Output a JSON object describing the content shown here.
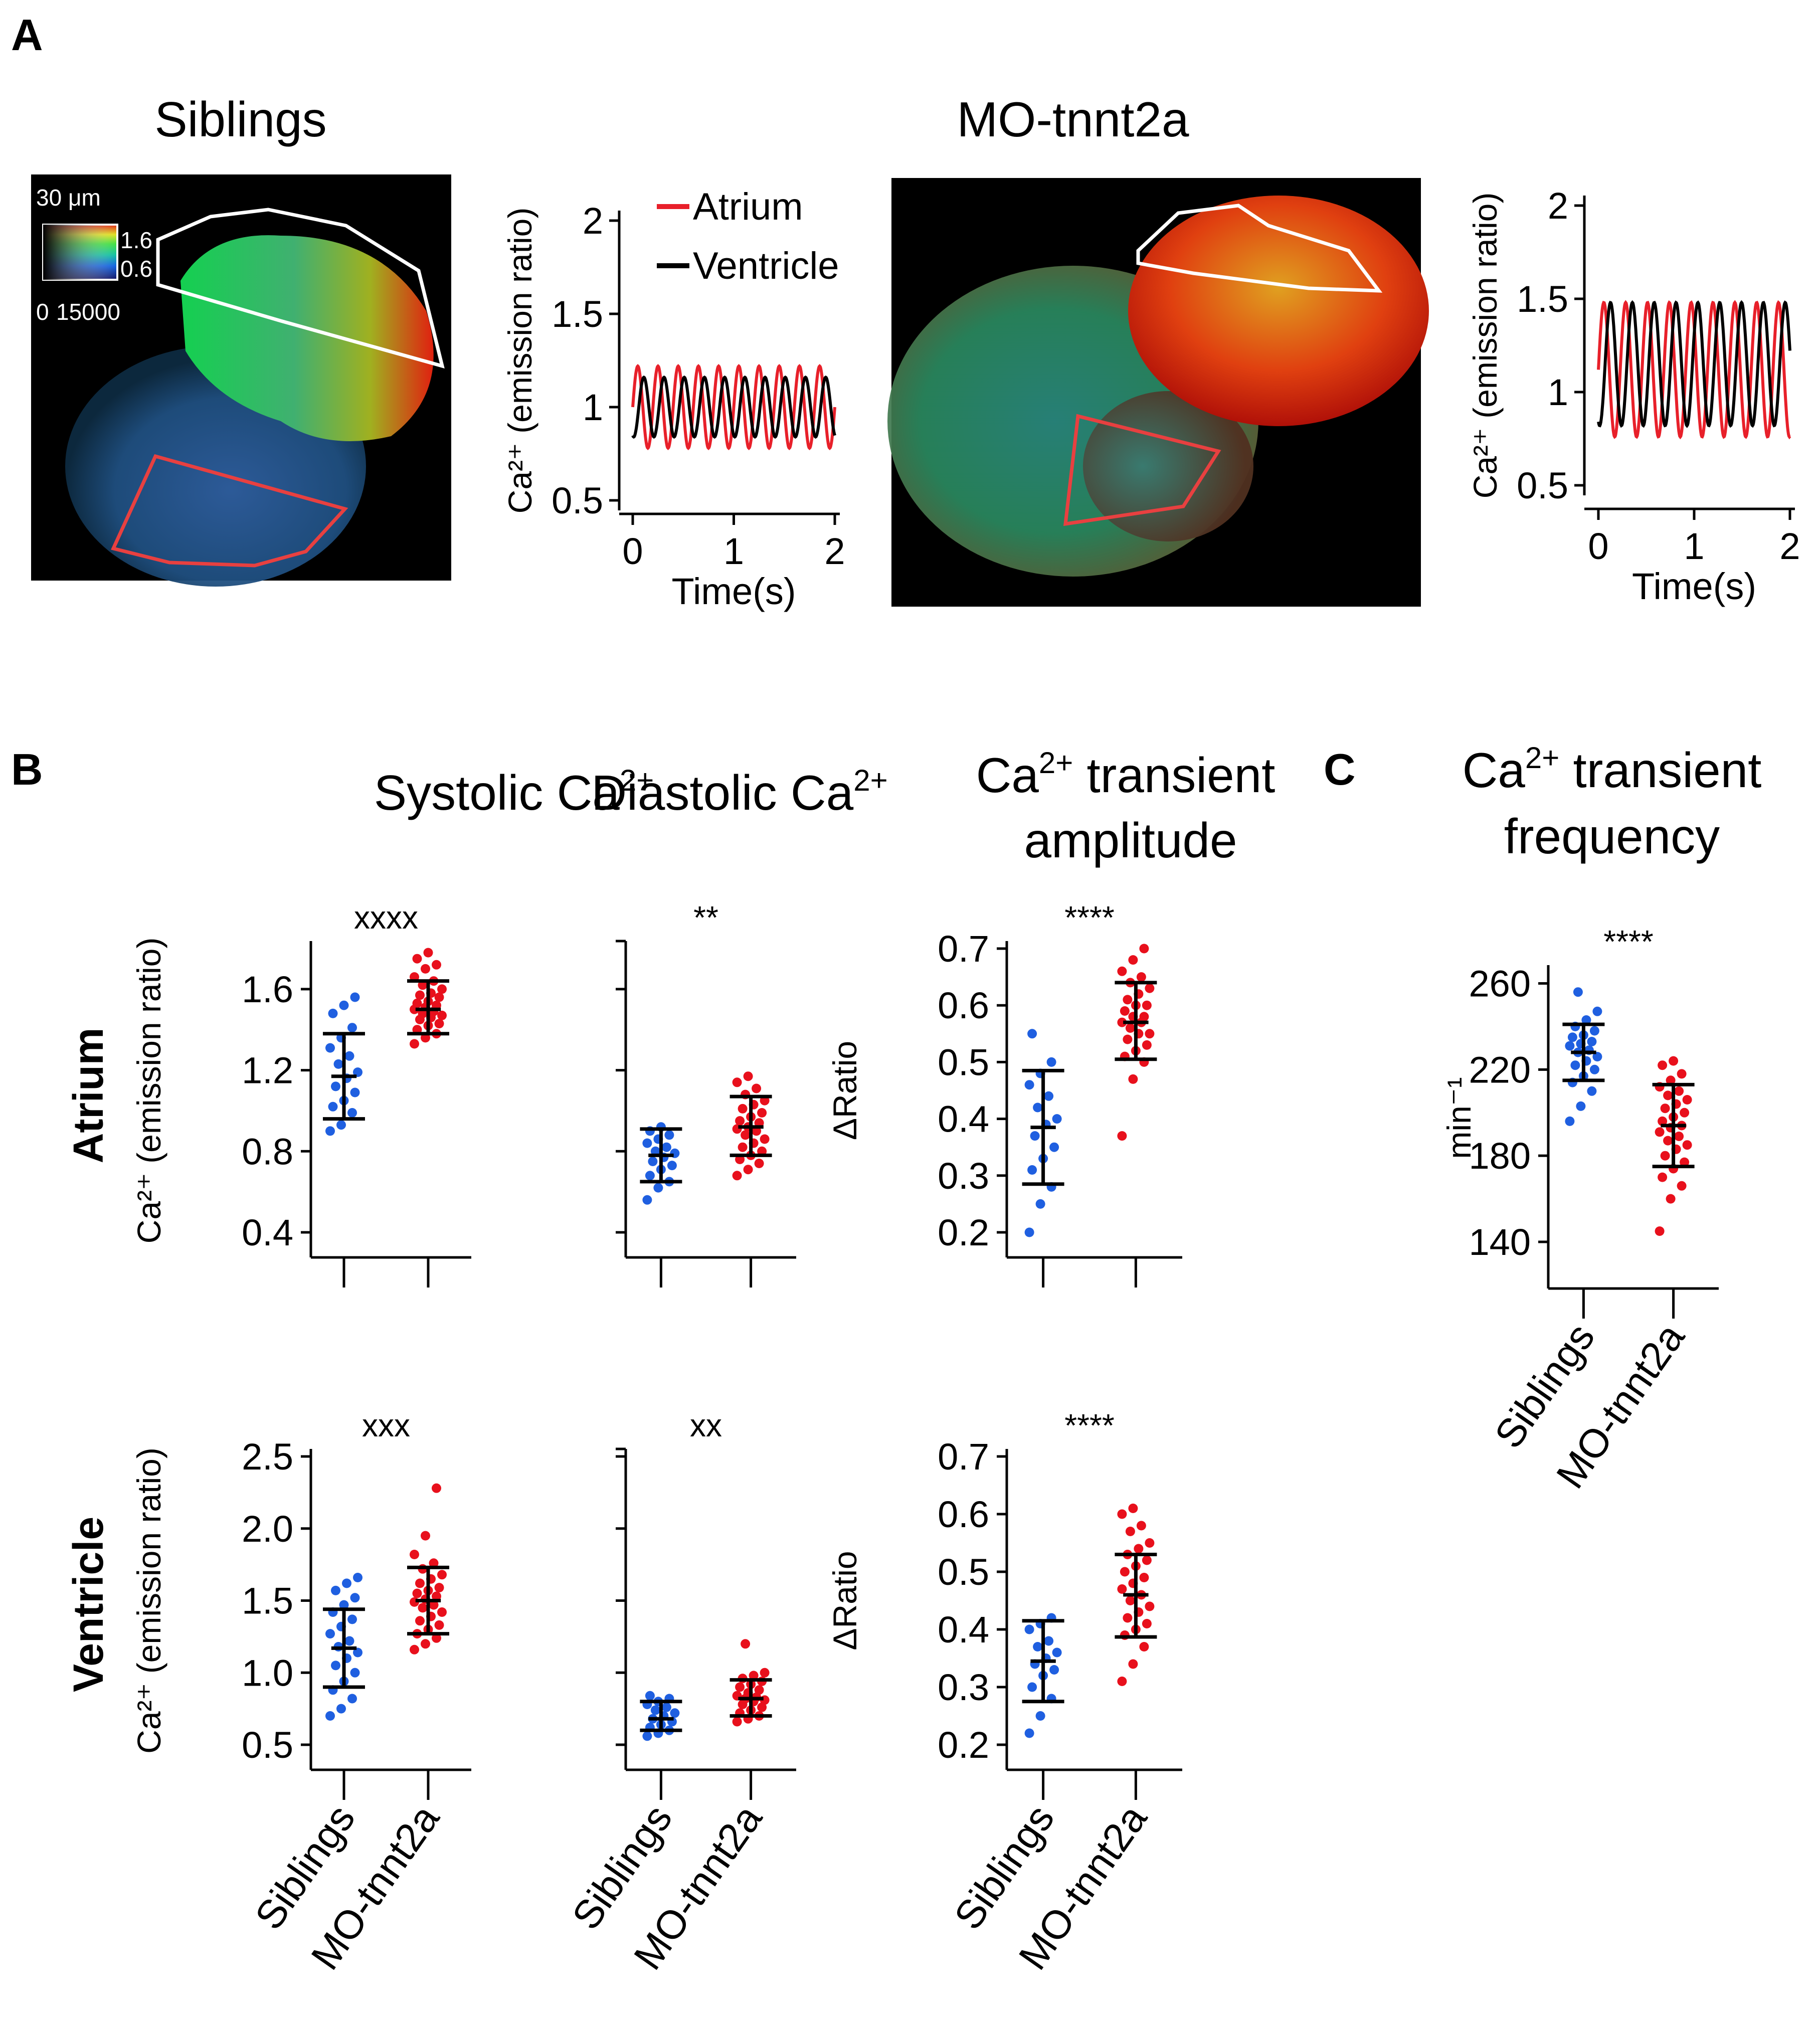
{
  "panels": {
    "A": "A",
    "B": "B",
    "C": "C"
  },
  "panelA": {
    "siblings": {
      "image_title": "Siblings",
      "scale_label": "30 μm",
      "colorbar": {
        "max_label": "1.6",
        "min_label": "0.6",
        "intensity_min": "0",
        "intensity_max": "15000"
      },
      "trace": {
        "xlabel": "Time(s)",
        "ylabel": "Ca²⁺ (emission ratio)",
        "xticks": [
          "0",
          "1",
          "2"
        ],
        "yticks": [
          "0.5",
          "1",
          "1.5",
          "2"
        ],
        "xlim": [
          0,
          2
        ],
        "ylim": [
          0.5,
          2
        ],
        "legend": [
          {
            "name": "Atrium",
            "color": "#e8202a"
          },
          {
            "name": "Ventricle",
            "color": "#000000"
          }
        ],
        "atrium": {
          "mean": 1.0,
          "amp": 0.22,
          "period_s": 0.2,
          "phase": 0.0
        },
        "ventricle": {
          "mean": 1.0,
          "amp": 0.16,
          "period_s": 0.2,
          "phase": 0.06
        }
      }
    },
    "mo": {
      "image_title": "MO-tnnt2a",
      "trace": {
        "xlabel": "Time(s)",
        "ylabel": "Ca²⁺ (emission ratio)",
        "xticks": [
          "0",
          "1",
          "2"
        ],
        "yticks": [
          "0.5",
          "1",
          "1.5",
          "2"
        ],
        "xlim": [
          0,
          2
        ],
        "ylim": [
          0.5,
          2
        ],
        "atrium": {
          "mean": 1.12,
          "amp": 0.36,
          "period_s": 0.228,
          "phase": 0.0
        },
        "ventricle": {
          "mean": 1.15,
          "amp": 0.33,
          "period_s": 0.228,
          "phase": 0.07
        }
      }
    }
  },
  "panelB": {
    "col_titles": {
      "systolic": "Systolic Ca",
      "diastolic": "Diastolic Ca",
      "sup2plus": "2+",
      "amp_line1a": "Ca",
      "amp_line1b": " transient",
      "amp_line2": "amplitude"
    },
    "row_labels": {
      "atrium": "Atrium",
      "ventricle": "Ventricle"
    },
    "ylabel_ca": "Ca²⁺ (emission ratio)",
    "ylabel_ratio": "ΔRatio",
    "categories": [
      "Siblings",
      "MO-tnnt2a"
    ]
  },
  "panelC": {
    "title_line1a": "Ca",
    "title_sup": "2+",
    "title_line1b": " transient",
    "title_line2": "frequency"
  },
  "colors": {
    "siblings": "#1f5fe0",
    "mo": "#e8101c",
    "atrium_roi": "#e84040",
    "ventricle_roi": "#ffffff"
  },
  "chart_data": [
    {
      "id": "atrium_systolic",
      "type": "scatter",
      "ylabel": "Ca²⁺ (emission ratio)",
      "ylim": [
        0.4,
        1.8
      ],
      "yticks": [
        "0.4",
        "0.8",
        "1.2",
        "1.6"
      ],
      "significance": "xxxx",
      "categories": [
        "Siblings",
        "MO-tnnt2a"
      ],
      "series": [
        {
          "name": "Siblings",
          "mean": 1.17,
          "sd_low": 0.96,
          "sd_high": 1.38,
          "values": [
            0.9,
            0.93,
            0.99,
            1.02,
            1.05,
            1.09,
            1.12,
            1.16,
            1.19,
            1.23,
            1.27,
            1.31,
            1.36,
            1.41,
            1.48,
            1.52,
            1.56
          ]
        },
        {
          "name": "MO-tnnt2a",
          "mean": 1.5,
          "sd_low": 1.38,
          "sd_high": 1.64,
          "values": [
            1.33,
            1.36,
            1.38,
            1.4,
            1.42,
            1.43,
            1.45,
            1.46,
            1.47,
            1.48,
            1.49,
            1.5,
            1.51,
            1.52,
            1.53,
            1.54,
            1.56,
            1.57,
            1.58,
            1.6,
            1.62,
            1.64,
            1.66,
            1.7,
            1.72,
            1.75,
            1.78
          ]
        }
      ]
    },
    {
      "id": "atrium_diastolic",
      "type": "scatter",
      "ylim": [
        0.4,
        1.8
      ],
      "significance": "**",
      "categories": [
        "Siblings",
        "MO-tnnt2a"
      ],
      "series": [
        {
          "name": "Siblings",
          "mean": 0.78,
          "sd_low": 0.65,
          "sd_high": 0.91,
          "values": [
            0.56,
            0.62,
            0.65,
            0.68,
            0.71,
            0.73,
            0.75,
            0.77,
            0.79,
            0.8,
            0.82,
            0.84,
            0.86,
            0.88,
            0.9,
            0.92
          ]
        },
        {
          "name": "MO-tnnt2a",
          "mean": 0.92,
          "sd_low": 0.78,
          "sd_high": 1.07,
          "values": [
            0.68,
            0.71,
            0.74,
            0.76,
            0.78,
            0.8,
            0.82,
            0.84,
            0.86,
            0.88,
            0.9,
            0.91,
            0.92,
            0.94,
            0.95,
            0.97,
            0.99,
            1.01,
            1.03,
            1.05,
            1.08,
            1.11,
            1.14,
            1.17
          ]
        }
      ]
    },
    {
      "id": "atrium_amplitude",
      "type": "scatter",
      "ylabel": "ΔRatio",
      "ylim": [
        0.2,
        0.7
      ],
      "yticks": [
        "0.2",
        "0.3",
        "0.4",
        "0.5",
        "0.6",
        "0.7"
      ],
      "significance": "****",
      "categories": [
        "Siblings",
        "MO-tnnt2a"
      ],
      "series": [
        {
          "name": "Siblings",
          "mean": 0.385,
          "sd_low": 0.285,
          "sd_high": 0.485,
          "values": [
            0.2,
            0.25,
            0.28,
            0.31,
            0.33,
            0.35,
            0.37,
            0.39,
            0.4,
            0.42,
            0.44,
            0.46,
            0.48,
            0.5,
            0.55
          ]
        },
        {
          "name": "MO-tnnt2a",
          "mean": 0.57,
          "sd_low": 0.505,
          "sd_high": 0.64,
          "values": [
            0.37,
            0.47,
            0.5,
            0.51,
            0.52,
            0.53,
            0.54,
            0.55,
            0.55,
            0.56,
            0.57,
            0.57,
            0.58,
            0.58,
            0.59,
            0.6,
            0.6,
            0.61,
            0.62,
            0.63,
            0.64,
            0.65,
            0.66,
            0.68,
            0.7
          ]
        }
      ]
    },
    {
      "id": "ventricle_systolic",
      "type": "scatter",
      "ylabel": "Ca²⁺ (emission ratio)",
      "ylim": [
        0.5,
        2.5
      ],
      "yticks": [
        "0.5",
        "1.0",
        "1.5",
        "2.0",
        "2.5"
      ],
      "significance": "xxx",
      "categories": [
        "Siblings",
        "MO-tnnt2a"
      ],
      "series": [
        {
          "name": "Siblings",
          "mean": 1.17,
          "sd_low": 0.9,
          "sd_high": 1.44,
          "values": [
            0.7,
            0.75,
            0.82,
            0.88,
            0.94,
            1.0,
            1.05,
            1.1,
            1.14,
            1.18,
            1.22,
            1.27,
            1.32,
            1.37,
            1.42,
            1.47,
            1.52,
            1.57,
            1.62,
            1.66
          ]
        },
        {
          "name": "MO-tnnt2a",
          "mean": 1.5,
          "sd_low": 1.27,
          "sd_high": 1.73,
          "values": [
            1.16,
            1.2,
            1.24,
            1.27,
            1.3,
            1.33,
            1.36,
            1.39,
            1.42,
            1.45,
            1.47,
            1.49,
            1.51,
            1.53,
            1.55,
            1.57,
            1.59,
            1.62,
            1.65,
            1.68,
            1.72,
            1.76,
            1.82,
            1.95,
            2.28
          ]
        }
      ]
    },
    {
      "id": "ventricle_diastolic",
      "type": "scatter",
      "ylim": [
        0.5,
        2.5
      ],
      "significance": "xx",
      "categories": [
        "Siblings",
        "MO-tnnt2a"
      ],
      "series": [
        {
          "name": "Siblings",
          "mean": 0.68,
          "sd_low": 0.6,
          "sd_high": 0.8,
          "values": [
            0.56,
            0.58,
            0.6,
            0.62,
            0.64,
            0.66,
            0.68,
            0.7,
            0.72,
            0.74,
            0.76,
            0.78,
            0.8,
            0.82,
            0.84
          ]
        },
        {
          "name": "MO-tnnt2a",
          "mean": 0.82,
          "sd_low": 0.7,
          "sd_high": 0.95,
          "values": [
            0.66,
            0.68,
            0.7,
            0.72,
            0.74,
            0.76,
            0.78,
            0.8,
            0.81,
            0.82,
            0.83,
            0.84,
            0.86,
            0.88,
            0.9,
            0.92,
            0.94,
            0.96,
            0.98,
            1.0,
            1.2
          ]
        }
      ]
    },
    {
      "id": "ventricle_amplitude",
      "type": "scatter",
      "ylabel": "ΔRatio",
      "ylim": [
        0.2,
        0.7
      ],
      "yticks": [
        "0.2",
        "0.3",
        "0.4",
        "0.5",
        "0.6",
        "0.7"
      ],
      "significance": "****",
      "categories": [
        "Siblings",
        "MO-tnnt2a"
      ],
      "series": [
        {
          "name": "Siblings",
          "mean": 0.345,
          "sd_low": 0.275,
          "sd_high": 0.415,
          "values": [
            0.22,
            0.25,
            0.28,
            0.3,
            0.32,
            0.33,
            0.34,
            0.35,
            0.36,
            0.37,
            0.38,
            0.4,
            0.41,
            0.42
          ]
        },
        {
          "name": "MO-tnnt2a",
          "mean": 0.46,
          "sd_low": 0.387,
          "sd_high": 0.53,
          "values": [
            0.31,
            0.34,
            0.37,
            0.39,
            0.4,
            0.41,
            0.42,
            0.43,
            0.44,
            0.45,
            0.46,
            0.47,
            0.48,
            0.49,
            0.5,
            0.51,
            0.52,
            0.53,
            0.54,
            0.55,
            0.57,
            0.58,
            0.6,
            0.61
          ]
        }
      ]
    },
    {
      "id": "frequency",
      "type": "scatter",
      "ylabel": "min⁻¹",
      "ylim": [
        130,
        265
      ],
      "yticks": [
        "140",
        "180",
        "220",
        "260"
      ],
      "significance": "****",
      "categories": [
        "Siblings",
        "MO-tnnt2a"
      ],
      "series": [
        {
          "name": "Siblings",
          "mean": 228,
          "sd_low": 215,
          "sd_high": 241,
          "values": [
            196,
            203,
            210,
            214,
            217,
            220,
            222,
            224,
            226,
            228,
            229,
            231,
            232,
            233,
            235,
            236,
            238,
            240,
            243,
            247,
            256
          ]
        },
        {
          "name": "MO-tnnt2a",
          "mean": 194,
          "sd_low": 175,
          "sd_high": 213,
          "values": [
            145,
            160,
            166,
            170,
            174,
            177,
            180,
            183,
            185,
            187,
            189,
            191,
            193,
            194,
            196,
            198,
            200,
            202,
            204,
            206,
            208,
            210,
            212,
            215,
            218,
            222,
            224
          ]
        }
      ]
    }
  ]
}
